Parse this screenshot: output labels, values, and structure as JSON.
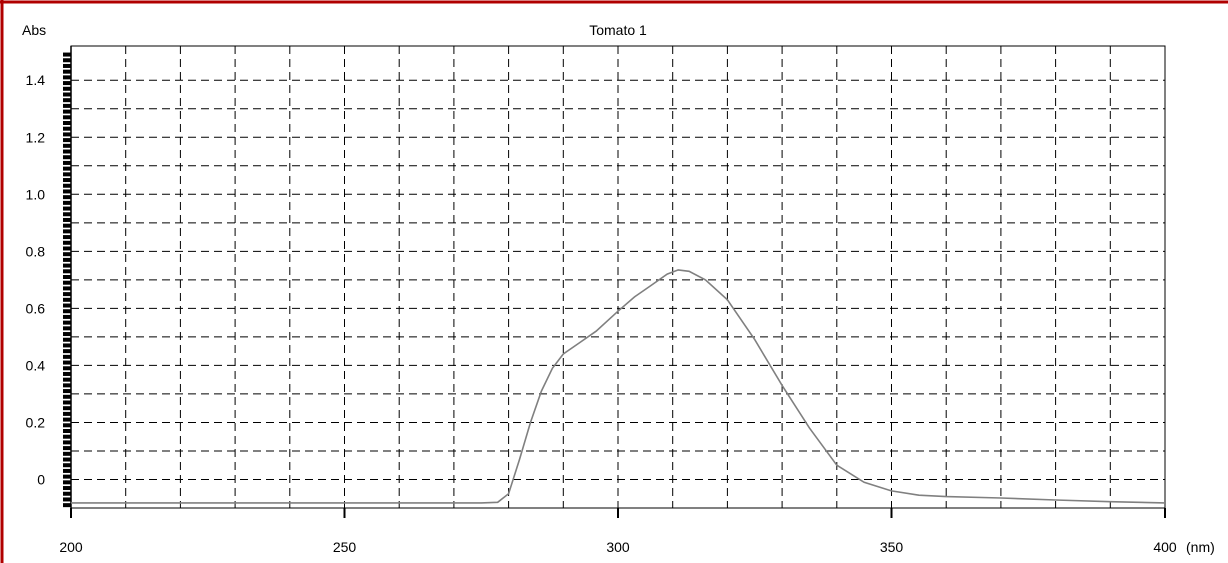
{
  "chart_data": {
    "type": "line",
    "title": "Tomato 1",
    "ylabel": "Abs",
    "xunit": "(nm)",
    "xlim": [
      200,
      400
    ],
    "ylim": [
      -0.1,
      1.52
    ],
    "x_ticks": [
      200,
      250,
      300,
      350,
      400
    ],
    "y_ticks": [
      0,
      0.2,
      0.4,
      0.6,
      0.8,
      1.0,
      1.2,
      1.4
    ],
    "y_tick_labels": [
      "0",
      "0.2",
      "0.4",
      "0.6",
      "0.8",
      "1.0",
      "1.2",
      "1.4"
    ],
    "grid": true,
    "series": [
      {
        "x": [
          200,
          220,
          240,
          260,
          275,
          278,
          280,
          282,
          284,
          286,
          288,
          290,
          293,
          296,
          300,
          303,
          306,
          309,
          311,
          313,
          316,
          320,
          325,
          330,
          335,
          340,
          345,
          350,
          355,
          360,
          370,
          380,
          390,
          400
        ],
        "y": [
          -0.082,
          -0.082,
          -0.082,
          -0.082,
          -0.082,
          -0.08,
          -0.05,
          0.07,
          0.2,
          0.31,
          0.39,
          0.44,
          0.48,
          0.52,
          0.59,
          0.64,
          0.68,
          0.72,
          0.735,
          0.73,
          0.7,
          0.63,
          0.49,
          0.33,
          0.18,
          0.05,
          -0.01,
          -0.04,
          -0.055,
          -0.06,
          -0.065,
          -0.072,
          -0.078,
          -0.082
        ]
      }
    ]
  },
  "colors": {
    "frame_border": "#b00000",
    "grid": "#000000",
    "curve": "#808080"
  }
}
